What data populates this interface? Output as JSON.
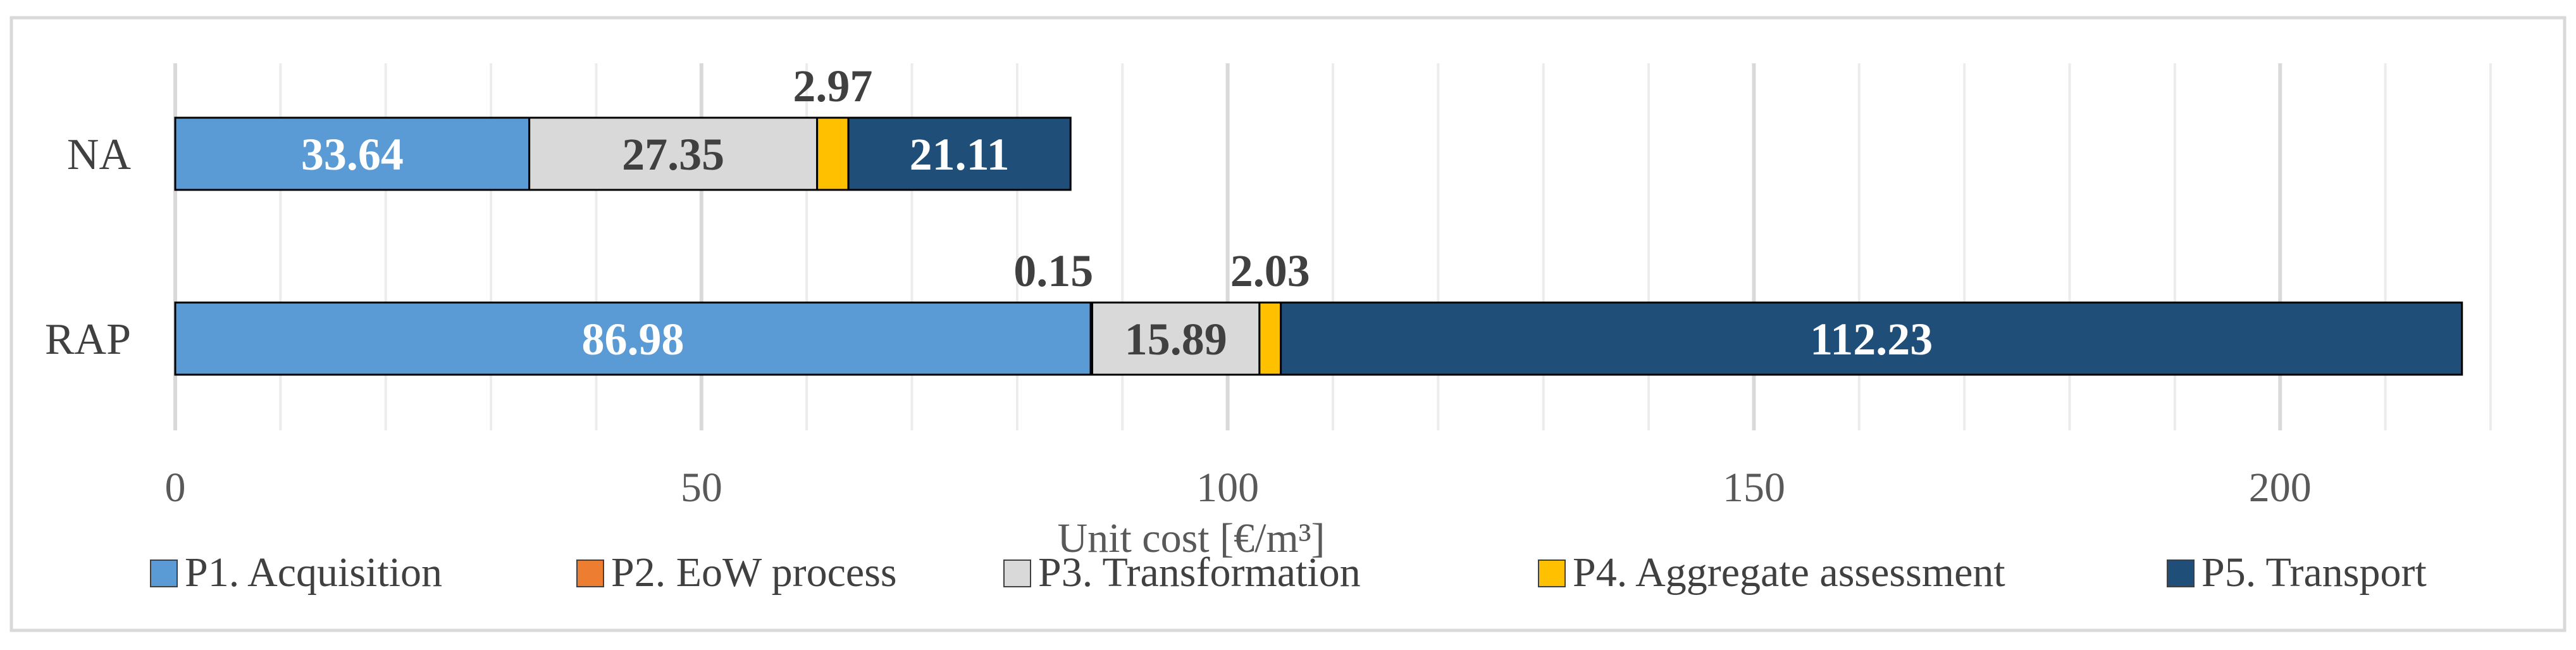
{
  "chart_data": {
    "type": "bar",
    "orientation": "horizontal",
    "stacked": true,
    "title": "",
    "xlabel": "Unit cost [€/m³]",
    "ylabel": "",
    "xlim": [
      0,
      220
    ],
    "x_ticks": [
      0,
      50,
      100,
      150,
      200
    ],
    "grid": true,
    "legend_position": "bottom",
    "categories": [
      "NA",
      "RAP"
    ],
    "series": [
      {
        "name": "P1. Acquisition",
        "color": "#5b9bd5",
        "values": [
          33.64,
          86.98
        ],
        "labels": [
          "33.64",
          "86.98"
        ],
        "label_color": "#ffffff"
      },
      {
        "name": "P2. EoW process",
        "color": "#ed7d31",
        "values": [
          0,
          0.15
        ],
        "labels": [
          "",
          "0.15"
        ],
        "label_color": "#404040"
      },
      {
        "name": "P3. Transformation",
        "color": "#d9d9d9",
        "values": [
          27.35,
          15.89
        ],
        "labels": [
          "27.35",
          "15.89"
        ],
        "label_color": "#404040"
      },
      {
        "name": "P4. Aggregate assessment",
        "color": "#ffc000",
        "values": [
          2.97,
          2.03
        ],
        "labels": [
          "2.97",
          "2.03"
        ],
        "label_color": "#404040"
      },
      {
        "name": "P5. Transport",
        "color": "#1f4e79",
        "values": [
          21.11,
          112.23
        ],
        "labels": [
          "21.11",
          "112.23"
        ],
        "label_color": "#ffffff"
      }
    ]
  }
}
